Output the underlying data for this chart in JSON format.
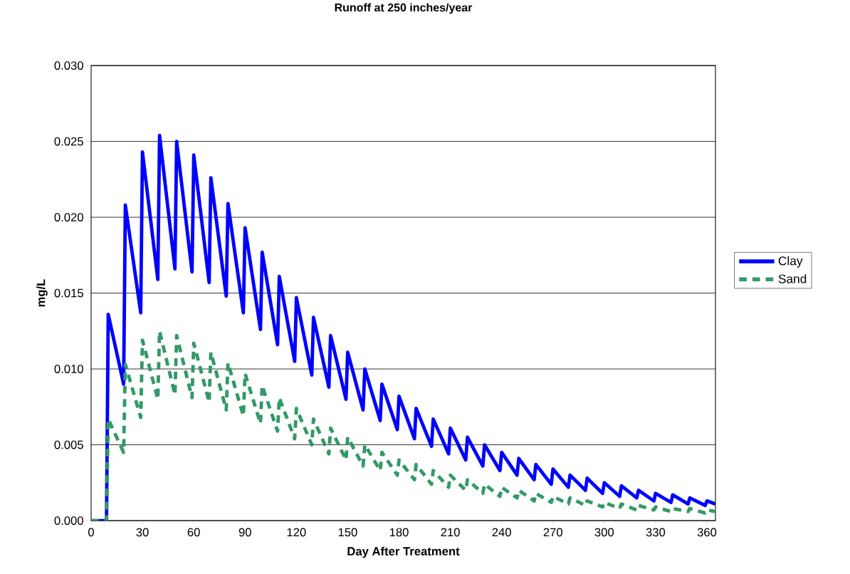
{
  "chart_data": {
    "type": "line",
    "title": "Runoff at 250 inches/year",
    "xlabel": "Day After Treatment",
    "ylabel": "mg/L",
    "x": [
      0,
      9,
      10,
      19,
      20,
      29,
      30,
      39,
      40,
      49,
      50,
      59,
      60,
      69,
      70,
      79,
      80,
      89,
      90,
      99,
      100,
      109,
      110,
      119,
      120,
      129,
      130,
      139,
      140,
      149,
      150,
      159,
      160,
      169,
      170,
      179,
      180,
      189,
      190,
      199,
      200,
      209,
      210,
      219,
      220,
      229,
      230,
      239,
      240,
      249,
      250,
      259,
      260,
      269,
      270,
      279,
      280,
      289,
      290,
      299,
      300,
      309,
      310,
      319,
      320,
      329,
      330,
      339,
      340,
      349,
      350,
      359,
      360,
      365
    ],
    "series": [
      {
        "name": "Clay",
        "color": "#0000ff",
        "line_style": "solid",
        "values": [
          0,
          0,
          0.0136,
          0.009,
          0.0208,
          0.0137,
          0.0243,
          0.0159,
          0.0254,
          0.0166,
          0.025,
          0.0164,
          0.0241,
          0.0157,
          0.0226,
          0.0148,
          0.0209,
          0.0137,
          0.0193,
          0.0126,
          0.0177,
          0.0116,
          0.0161,
          0.0105,
          0.0147,
          0.0096,
          0.0134,
          0.0088,
          0.0122,
          0.008,
          0.0111,
          0.0073,
          0.01,
          0.0066,
          0.009,
          0.006,
          0.0082,
          0.0054,
          0.0074,
          0.0049,
          0.0067,
          0.0044,
          0.0061,
          0.004,
          0.0055,
          0.0036,
          0.005,
          0.0033,
          0.0045,
          0.003,
          0.0041,
          0.0027,
          0.0037,
          0.0024,
          0.0034,
          0.0022,
          0.003,
          0.002,
          0.0028,
          0.0018,
          0.0025,
          0.0016,
          0.0023,
          0.0015,
          0.002,
          0.0013,
          0.0018,
          0.0012,
          0.0017,
          0.0011,
          0.0015,
          0.001,
          0.0013,
          0.0011
        ]
      },
      {
        "name": "Sand",
        "color": "#339966",
        "line_style": "dashed",
        "values": [
          0,
          0,
          0.0067,
          0.0045,
          0.0103,
          0.0068,
          0.0119,
          0.008,
          0.0125,
          0.0083,
          0.0122,
          0.0081,
          0.0117,
          0.0078,
          0.0111,
          0.0073,
          0.0104,
          0.0069,
          0.0097,
          0.0064,
          0.0089,
          0.0059,
          0.0081,
          0.0054,
          0.0074,
          0.005,
          0.0067,
          0.0044,
          0.0061,
          0.004,
          0.0055,
          0.0036,
          0.005,
          0.0033,
          0.0045,
          0.003,
          0.004,
          0.0027,
          0.0037,
          0.0024,
          0.0033,
          0.0022,
          0.003,
          0.002,
          0.0027,
          0.0018,
          0.0024,
          0.0016,
          0.0022,
          0.0015,
          0.002,
          0.0013,
          0.0018,
          0.0012,
          0.0016,
          0.0011,
          0.0015,
          0.001,
          0.0013,
          0.0009,
          0.0012,
          0.0008,
          0.0011,
          0.0007,
          0.001,
          0.0007,
          0.0009,
          0.0006,
          0.0008,
          0.0006,
          0.0008,
          0.0005,
          0.0007,
          0.0006
        ]
      }
    ],
    "xlim": [
      0,
      365
    ],
    "xticks": [
      0,
      30,
      60,
      90,
      120,
      150,
      180,
      210,
      240,
      270,
      300,
      330,
      360
    ],
    "ylim": [
      0,
      0.03
    ],
    "yticks": [
      {
        "value": 0,
        "label": "0.000"
      },
      {
        "value": 0.005,
        "label": "0.005"
      },
      {
        "value": 0.01,
        "label": "0.010"
      },
      {
        "value": 0.015,
        "label": "0.015"
      },
      {
        "value": 0.02,
        "label": "0.020"
      },
      {
        "value": 0.025,
        "label": "0.025"
      },
      {
        "value": 0.03,
        "label": "0.030"
      }
    ],
    "grid": "y",
    "legend": "right",
    "marker": "none"
  }
}
